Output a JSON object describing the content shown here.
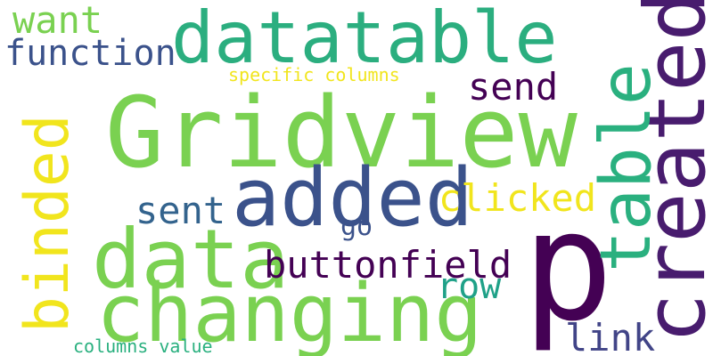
{
  "words": {
    "gridview": {
      "text": "Gridview",
      "color": "#7AD151"
    },
    "p": {
      "text": "p",
      "color": "#440154"
    },
    "datatable": {
      "text": "datatable",
      "color": "#2BAE7F"
    },
    "added": {
      "text": "added",
      "color": "#3B528B"
    },
    "data": {
      "text": "data",
      "color": "#7AD151"
    },
    "changing": {
      "text": "changing",
      "color": "#7AD151"
    },
    "binded": {
      "text": "binded",
      "color": "#F1E51D"
    },
    "created": {
      "text": "created",
      "color": "#481C6E"
    },
    "table": {
      "text": "table",
      "color": "#2AB07F"
    },
    "clicked": {
      "text": "clicked",
      "color": "#F1E51D"
    },
    "buttonfield": {
      "text": "buttonfield",
      "color": "#440154"
    },
    "sent": {
      "text": "sent",
      "color": "#33638D"
    },
    "send": {
      "text": "send",
      "color": "#440154"
    },
    "function": {
      "text": "function",
      "color": "#3B528B"
    },
    "want": {
      "text": "want",
      "color": "#7AD151"
    },
    "row": {
      "text": "row",
      "color": "#1FA188"
    },
    "link": {
      "text": "link",
      "color": "#414487"
    },
    "go": {
      "text": "go",
      "color": "#3B528B"
    },
    "specific_columns": {
      "text": "specific columns",
      "color": "#F1E51D"
    },
    "columns_value": {
      "text": "columns value",
      "color": "#2AB07F"
    }
  }
}
